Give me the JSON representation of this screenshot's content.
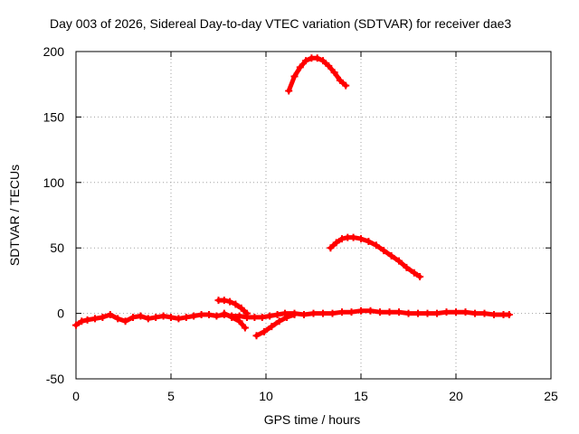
{
  "chart_data": {
    "type": "scatter",
    "title": "Day 003 of 2026, Sidereal Day-to-day VTEC variation (SDTVAR) for receiver dae3",
    "xlabel": "GPS time / hours",
    "ylabel": "SDTVAR / TECUs",
    "xlim": [
      0,
      25
    ],
    "ylim": [
      -50,
      200
    ],
    "xticks": [
      0,
      5,
      10,
      15,
      20,
      25
    ],
    "yticks": [
      -50,
      0,
      50,
      100,
      150,
      200
    ],
    "grid": true,
    "legend": "none",
    "series_color": "#ff0000",
    "series": [
      {
        "name": "main-baseline",
        "x": [
          0.0,
          0.3,
          0.6,
          1.0,
          1.4,
          1.8,
          2.2,
          2.6,
          3.0,
          3.4,
          3.8,
          4.2,
          4.6,
          5.0,
          5.4,
          5.8,
          6.2,
          6.6,
          7.0,
          7.4,
          7.8,
          8.2,
          8.6,
          9.0,
          9.4,
          9.8,
          10.2,
          10.6,
          11.0,
          11.5,
          12.0,
          12.5,
          13.0,
          13.5,
          14.0,
          14.5,
          15.0,
          15.5,
          16.0,
          16.5,
          17.0,
          17.5,
          18.0,
          18.5,
          19.0,
          19.5,
          20.0,
          20.5,
          21.0,
          21.5,
          22.0,
          22.5,
          22.8
        ],
        "y": [
          -9,
          -6,
          -5,
          -4,
          -3,
          -1,
          -4,
          -6,
          -3,
          -2,
          -4,
          -3,
          -2,
          -3,
          -4,
          -3,
          -2,
          -1,
          -1,
          -2,
          -1,
          -2,
          -2,
          -3,
          -3,
          -3,
          -2,
          -1,
          0,
          0,
          -1,
          0,
          0,
          0,
          1,
          1,
          2,
          2,
          1,
          1,
          1,
          0,
          0,
          0,
          0,
          1,
          1,
          1,
          0,
          0,
          -1,
          -1,
          -1
        ]
      },
      {
        "name": "arc-high",
        "x": [
          11.2,
          11.5,
          11.8,
          12.1,
          12.4,
          12.7,
          13.0,
          13.3,
          13.6,
          13.9,
          14.2
        ],
        "y": [
          170,
          181,
          188,
          193,
          195,
          195,
          193,
          189,
          184,
          178,
          174
        ]
      },
      {
        "name": "arc-mid",
        "x": [
          13.4,
          13.7,
          14.0,
          14.3,
          14.6,
          15.0,
          15.4,
          15.8,
          16.2,
          16.6,
          17.0,
          17.4,
          17.8,
          18.1
        ],
        "y": [
          50,
          54,
          57,
          58,
          58,
          57,
          55,
          52,
          48,
          44,
          40,
          35,
          31,
          28
        ]
      },
      {
        "name": "arc-small",
        "x": [
          7.5,
          7.8,
          8.1,
          8.4,
          8.7,
          9.0
        ],
        "y": [
          10,
          10,
          9,
          7,
          4,
          0
        ]
      },
      {
        "name": "dip-segment",
        "x": [
          7.8,
          8.2,
          8.6,
          8.9
        ],
        "y": [
          0,
          -3,
          -6,
          -11
        ]
      },
      {
        "name": "rising-segment",
        "x": [
          9.5,
          9.9,
          10.3,
          10.7,
          11.1,
          11.5
        ],
        "y": [
          -17,
          -14,
          -10,
          -6,
          -3,
          -1
        ]
      }
    ]
  }
}
